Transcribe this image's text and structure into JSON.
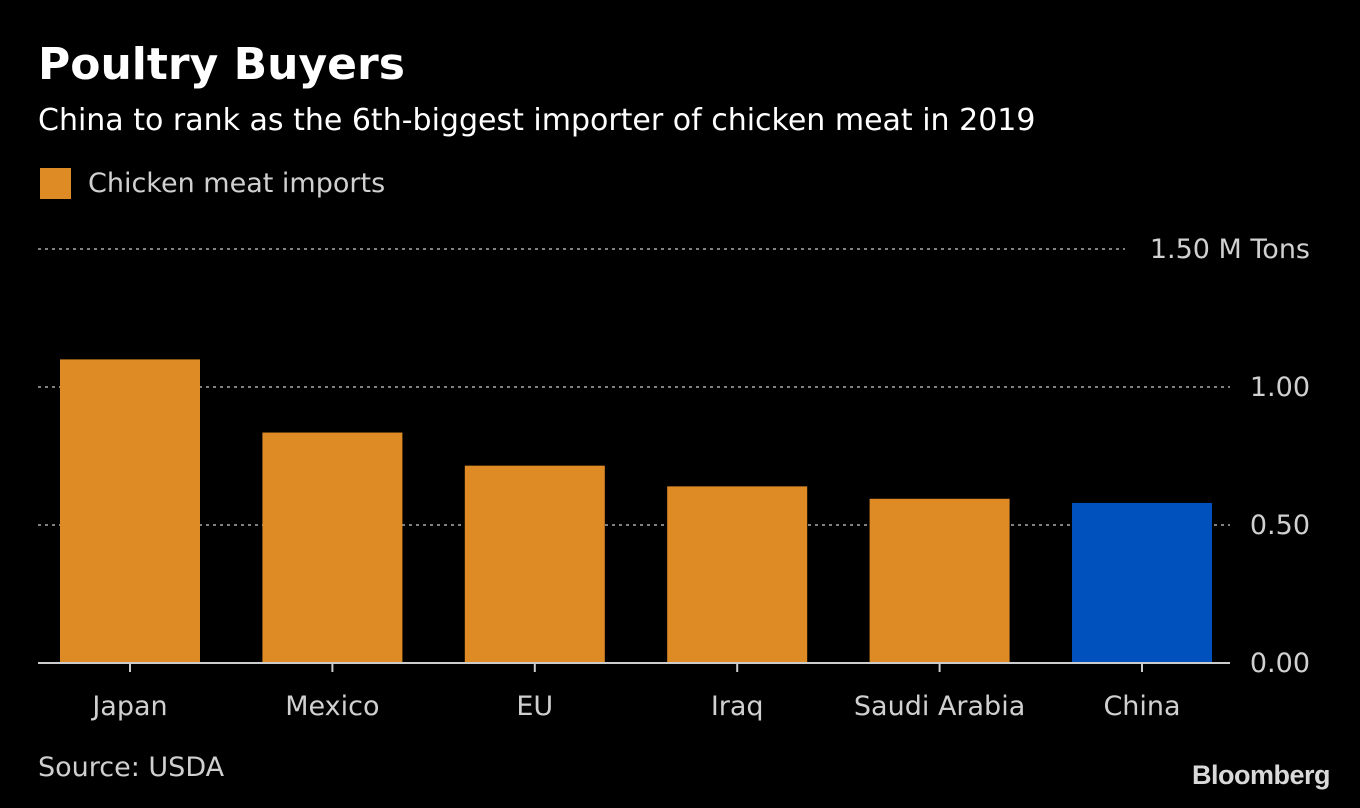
{
  "header": {
    "title": "Poultry Buyers",
    "subtitle": "China to rank as the 6th-biggest importer of chicken meat in 2019"
  },
  "footer": {
    "source": "Source: USDA",
    "logo": "Bloomberg"
  },
  "colors": {
    "background": "#000000",
    "series": "#de8a25",
    "highlight": "#0050be",
    "gridline": "#808080",
    "axis": "#cccccc"
  },
  "chart_data": {
    "type": "bar",
    "title": "Poultry Buyers",
    "subtitle": "China to rank as the 6th-biggest importer of chicken meat in 2019",
    "categories": [
      "Japan",
      "Mexico",
      "EU",
      "Iraq",
      "Saudi Arabia",
      "China"
    ],
    "series": [
      {
        "name": "Chicken meat imports",
        "values": [
          1.1,
          0.835,
          0.715,
          0.64,
          0.595,
          0.58
        ]
      }
    ],
    "highlight_category": "China",
    "unit": "M Tons",
    "ylim": [
      0,
      1.5
    ],
    "yticks": [
      {
        "value": 0,
        "label": "0.00"
      },
      {
        "value": 0.5,
        "label": "0.50"
      },
      {
        "value": 1.0,
        "label": "1.00"
      },
      {
        "value": 1.5,
        "label": "1.50 M Tons"
      }
    ],
    "grid": true,
    "legend": "top-left",
    "xlabel": "",
    "ylabel": ""
  }
}
